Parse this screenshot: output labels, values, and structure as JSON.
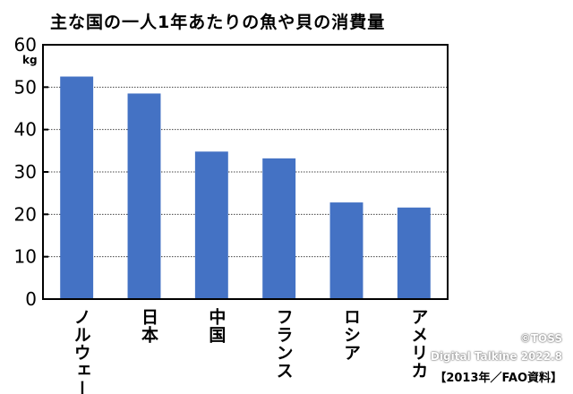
{
  "chart_data": {
    "type": "bar",
    "title": "主な国の一人1年あたりの魚や貝の消費量",
    "unit": "kg",
    "categories": [
      "ノルウェー",
      "日本",
      "中国",
      "フランス",
      "ロシア",
      "アメリカ"
    ],
    "values": [
      52.5,
      48.5,
      34.8,
      33.2,
      22.8,
      21.6
    ],
    "ylim": [
      0,
      60
    ],
    "yticks": [
      0,
      10,
      20,
      30,
      40,
      50,
      60
    ],
    "grid": true,
    "bar_color": "#4472c4"
  },
  "credits": {
    "copyright": "©TOSS",
    "digital": "Digital Talkine 2022.8",
    "source": "【2013年／FAO資料】"
  }
}
